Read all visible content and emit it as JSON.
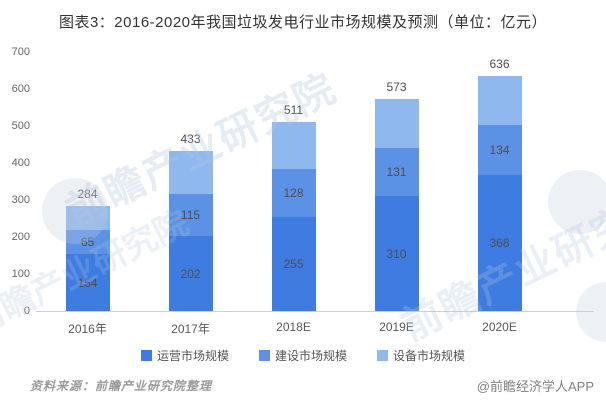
{
  "title": "图表3：2016-2020年我国垃圾发电行业市场规模及预测（单位：亿元）",
  "chart_data": {
    "type": "bar",
    "stacked": true,
    "title": "图表3：2016-2020年我国垃圾发电行业市场规模及预测（单位：亿元）",
    "unit": "亿元",
    "categories": [
      "2016年",
      "2017年",
      "2018E",
      "2019E",
      "2020E"
    ],
    "series": [
      {
        "name": "运营市场规模",
        "color": "#3E7CE1",
        "values": [
          154,
          202,
          255,
          310,
          368
        ],
        "labels_shown": true
      },
      {
        "name": "建设市场规模",
        "color": "#5B92E5",
        "values": [
          65,
          115,
          128,
          131,
          134
        ],
        "labels_shown": true
      },
      {
        "name": "设备市场规模",
        "color": "#8FB8EF",
        "values": [
          65,
          116,
          128,
          132,
          134
        ],
        "labels_shown": false
      }
    ],
    "totals": [
      284,
      433,
      511,
      573,
      636
    ],
    "ylim": [
      0,
      700
    ],
    "yticks": [
      0,
      100,
      200,
      300,
      400,
      500,
      600,
      700
    ],
    "grid": false,
    "legend_position": "bottom"
  },
  "footer": {
    "source": "资料来源：前瞻产业研究院整理",
    "brand": "@前瞻经济学人APP"
  },
  "watermark": {
    "text": "前瞻产业研究院"
  }
}
